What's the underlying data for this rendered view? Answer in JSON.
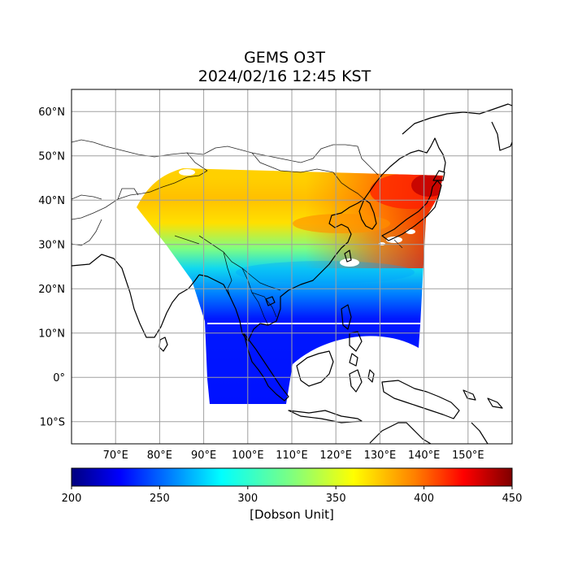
{
  "title": {
    "line1": "GEMS O3T",
    "line2": "2024/02/16 12:45 KST"
  },
  "map": {
    "lon_range": [
      60,
      160
    ],
    "lat_range": [
      -15,
      65
    ],
    "lat_ticks": [
      {
        "value": 60,
        "label": "60°N"
      },
      {
        "value": 50,
        "label": "50°N"
      },
      {
        "value": 40,
        "label": "40°N"
      },
      {
        "value": 30,
        "label": "30°N"
      },
      {
        "value": 20,
        "label": "20°N"
      },
      {
        "value": 10,
        "label": "10°N"
      },
      {
        "value": 0,
        "label": "0°"
      },
      {
        "value": -10,
        "label": "10°S"
      }
    ],
    "lon_ticks": [
      {
        "value": 70,
        "label": "70°E"
      },
      {
        "value": 80,
        "label": "80°E"
      },
      {
        "value": 90,
        "label": "90°E"
      },
      {
        "value": 100,
        "label": "100°E"
      },
      {
        "value": 110,
        "label": "110°E"
      },
      {
        "value": 120,
        "label": "120°E"
      },
      {
        "value": 130,
        "label": "130°E"
      },
      {
        "value": 140,
        "label": "140°E"
      },
      {
        "value": 150,
        "label": "150°E"
      }
    ],
    "grid": true,
    "colormap": "jet"
  },
  "colorbar": {
    "min": 200,
    "max": 450,
    "ticks": [
      {
        "value": 200,
        "label": "200"
      },
      {
        "value": 250,
        "label": "250"
      },
      {
        "value": 300,
        "label": "300"
      },
      {
        "value": 350,
        "label": "350"
      },
      {
        "value": 400,
        "label": "400"
      },
      {
        "value": 450,
        "label": "450"
      }
    ],
    "title": "[Dobson Unit]",
    "colors": [
      "#00007f",
      "#0000ff",
      "#007fff",
      "#00ffff",
      "#7fff7f",
      "#ffff00",
      "#ff7f00",
      "#ff0000",
      "#7f0000"
    ]
  }
}
